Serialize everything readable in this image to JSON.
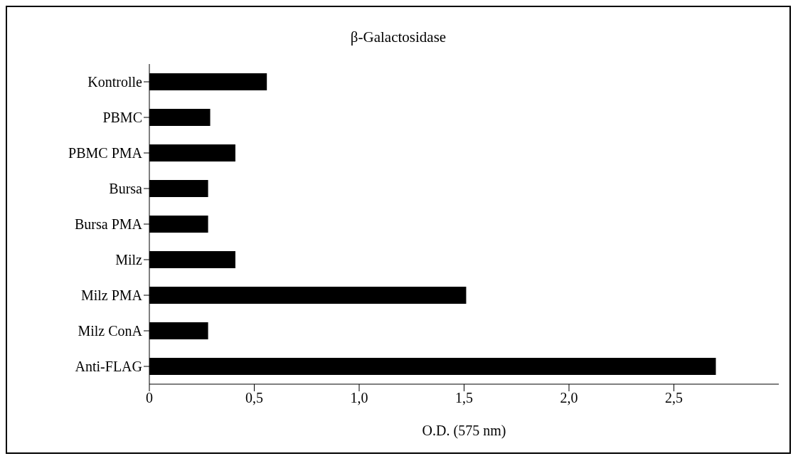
{
  "chart_data": {
    "type": "bar",
    "orientation": "horizontal",
    "title": "β-Galactosidase",
    "xlabel": "O.D. (575 nm)",
    "categories": [
      "Kontrolle",
      "PBMC",
      "PBMC PMA",
      "Bursa",
      "Bursa PMA",
      "Milz",
      "Milz PMA",
      "Milz ConA",
      "Anti-FLAG"
    ],
    "values": [
      0.56,
      0.29,
      0.41,
      0.28,
      0.28,
      0.41,
      1.51,
      0.28,
      2.7
    ],
    "color": "#000000",
    "xlim": [
      0,
      3
    ],
    "xticks": [
      {
        "value": 0,
        "label": "0"
      },
      {
        "value": 0.5,
        "label": "0,5"
      },
      {
        "value": 1,
        "label": "1,0"
      },
      {
        "value": 1.5,
        "label": "1,5"
      },
      {
        "value": 2,
        "label": "2,0"
      },
      {
        "value": 2.5,
        "label": "2,5"
      }
    ],
    "grid": false,
    "legend": false
  }
}
